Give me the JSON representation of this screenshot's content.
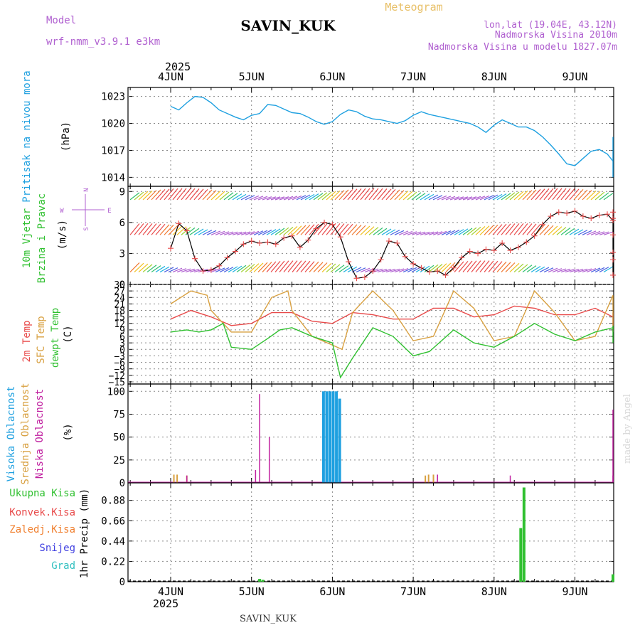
{
  "header": {
    "model_label": "Model",
    "model_value": "wrf-nmm_v3.9.1  e3km",
    "station": "SAVIN_KUK",
    "meteogram": "Meteogram",
    "lonlat": "lon,lat (19.04E, 43.12N)",
    "altitude": "Nadmorska Visina 2010m",
    "model_altitude": "Nadmorska Visina u modelu 1827.07m",
    "footer_station": "SAVIN_KUK",
    "credit": "made by Angel"
  },
  "colors": {
    "pressure": "#1ea0e0",
    "temp2m": "#e84a4a",
    "sfc": "#d8a040",
    "dew": "#30c030",
    "purple": "#b060d0",
    "high_cloud": "#1ea0e0",
    "mid_cloud": "#d8a040",
    "low_cloud": "#c020a0",
    "precip_total": "#30c030",
    "conv": "#e84a4a",
    "frozen": "#f08030",
    "snow": "#4040e0",
    "hail": "#30c0c0",
    "grid": "#888888"
  },
  "chart_data": {
    "type": "line",
    "x_range": [
      0,
      6.1
    ],
    "days": [
      "4JUN",
      "5JUN",
      "6JUN",
      "7JUN",
      "8JUN",
      "9JUN"
    ],
    "year": "2025",
    "panels": [
      {
        "id": "pressure",
        "ylabel_main": "Pritisak na nivou mora",
        "ylabel_unit": "(hPa)",
        "ylim": [
          1013,
          1024
        ],
        "yticks": [
          "1014",
          "1017",
          "1020",
          "1023"
        ],
        "series": [
          {
            "name": "MSLP",
            "x": [
              0,
              0.1,
              0.2,
              0.3,
              0.4,
              0.5,
              0.6,
              0.7,
              0.8,
              0.9,
              1.0,
              1.1,
              1.2,
              1.3,
              1.4,
              1.5,
              1.6,
              1.7,
              1.8,
              1.9,
              2.0,
              2.1,
              2.2,
              2.3,
              2.4,
              2.5,
              2.6,
              2.7,
              2.8,
              2.9,
              3.0,
              3.1,
              3.2,
              3.3,
              3.4,
              3.5,
              3.6,
              3.7,
              3.8,
              3.9,
              4.0,
              4.1,
              4.2,
              4.3,
              4.4,
              4.5,
              4.6,
              4.7,
              4.8,
              4.9,
              5.0,
              5.1,
              5.2,
              5.3,
              5.4,
              5.5,
              5.6,
              5.7,
              5.8,
              5.9,
              6.0,
              6.1
            ],
            "values": [
              1021.9,
              1021.5,
              1022.3,
              1023.0,
              1022.9,
              1022.3,
              1021.5,
              1021.1,
              1020.7,
              1020.4,
              1020.9,
              1021.1,
              1022.1,
              1022.0,
              1021.6,
              1021.2,
              1021.1,
              1020.7,
              1020.2,
              1019.9,
              1020.2,
              1021.0,
              1021.5,
              1021.3,
              1020.8,
              1020.5,
              1020.4,
              1020.2,
              1020.0,
              1020.3,
              1020.9,
              1021.3,
              1021.0,
              1020.8,
              1020.6,
              1020.4,
              1020.2,
              1020.0,
              1019.6,
              1019.0,
              1019.8,
              1020.4,
              1020.0,
              1019.6,
              1019.6,
              1019.2,
              1018.5,
              1017.6,
              1016.6,
              1015.5,
              1015.3,
              1016.1,
              1016.9,
              1017.1,
              1016.6,
              1015.8,
              1015.0,
              1014.3,
              1014.1,
              1014.0,
              1016.2,
              1018.5
            ]
          }
        ]
      },
      {
        "id": "wind",
        "ylabel_main": "10m Vjetar",
        "ylabel_sub": "Brzina i Pravac",
        "ylabel_unit": "(m/s)",
        "compass_w": "W",
        "compass_e": "E",
        "compass_n": "N",
        "compass_s": "S",
        "ylim": [
          0,
          9.5
        ],
        "yticks": [
          "0",
          "3",
          "6",
          "9"
        ],
        "series": [
          {
            "name": "Speed",
            "x": [
              0,
              0.1,
              0.2,
              0.3,
              0.4,
              0.5,
              0.6,
              0.7,
              0.8,
              0.9,
              1.0,
              1.1,
              1.2,
              1.3,
              1.4,
              1.5,
              1.6,
              1.7,
              1.8,
              1.9,
              2.0,
              2.1,
              2.2,
              2.3,
              2.4,
              2.5,
              2.6,
              2.7,
              2.8,
              2.9,
              3.0,
              3.1,
              3.2,
              3.3,
              3.4,
              3.5,
              3.6,
              3.7,
              3.8,
              3.9,
              4.0,
              4.1,
              4.2,
              4.3,
              4.4,
              4.5,
              4.6,
              4.7,
              4.8,
              4.9,
              5.0,
              5.1,
              5.2,
              5.3,
              5.4,
              5.5,
              5.6,
              5.7,
              5.8,
              5.9,
              6.0,
              6.1
            ],
            "values": [
              3.5,
              5.9,
              5.2,
              2.5,
              1.3,
              1.4,
              1.8,
              2.6,
              3.2,
              3.9,
              4.2,
              4.0,
              4.1,
              3.9,
              4.5,
              4.7,
              3.6,
              4.3,
              5.4,
              6.0,
              5.8,
              4.6,
              2.2,
              0.6,
              0.7,
              1.3,
              2.4,
              4.2,
              4.0,
              2.7,
              2.0,
              1.6,
              1.2,
              1.3,
              0.9,
              1.6,
              2.6,
              3.2,
              3.0,
              3.4,
              3.3,
              4.0,
              3.3,
              3.6,
              4.1,
              4.7,
              5.8,
              6.6,
              7.0,
              6.9,
              7.1,
              6.6,
              6.4,
              6.7,
              6.8,
              6.2,
              4.8,
              3.1,
              0.9,
              2.4,
              6.4,
              7.0
            ]
          }
        ],
        "arrow_rows_mps": [
          8.2,
          4.8,
          1.2
        ]
      },
      {
        "id": "temperature",
        "ylabel_main": "2m Temp",
        "ylabel_sub": "SFC Temp",
        "ylabel_sub2": "dewpt Temp",
        "ylabel_unit": "(C)",
        "ylim": [
          -16,
          30
        ],
        "yticks": [
          "-15",
          "-12",
          "-9",
          "-6",
          "-3",
          "0",
          "3",
          "6",
          "9",
          "12",
          "15",
          "18",
          "21",
          "24",
          "27",
          "30"
        ],
        "series": [
          {
            "name": "2m Temp",
            "x": [
              0,
              0.25,
              0.5,
              0.75,
              1.0,
              1.25,
              1.5,
              1.75,
              2.0,
              2.25,
              2.5,
              2.75,
              3.0,
              3.25,
              3.5,
              3.75,
              4.0,
              4.25,
              4.5,
              4.75,
              5.0,
              5.25,
              5.5,
              5.75,
              6.0,
              6.1
            ],
            "values": [
              14,
              18,
              15,
              11,
              12,
              17,
              17,
              13,
              12,
              17,
              16,
              14,
              14,
              19,
              19,
              15,
              16,
              20,
              19,
              16,
              16,
              19,
              15,
              11,
              17,
              11
            ]
          },
          {
            "name": "SFC Temp",
            "x": [
              0,
              0.25,
              0.45,
              0.5,
              0.75,
              1.0,
              1.25,
              1.45,
              1.5,
              1.75,
              2.0,
              2.12,
              2.25,
              2.5,
              2.75,
              3.0,
              3.25,
              3.5,
              3.75,
              4.0,
              4.25,
              4.5,
              4.75,
              5.0,
              5.25,
              5.5,
              5.75,
              6.0,
              6.1
            ],
            "values": [
              21,
              27,
              25,
              18,
              8,
              8,
              24,
              27,
              18,
              6,
              2,
              0,
              17,
              27,
              18,
              4,
              6,
              27,
              19,
              4,
              6,
              27,
              17,
              4,
              6,
              25,
              8,
              24,
              12
            ]
          },
          {
            "name": "dewpt Temp",
            "x": [
              0,
              0.2,
              0.35,
              0.5,
              0.65,
              0.75,
              1.0,
              1.2,
              1.35,
              1.5,
              1.75,
              2.0,
              2.1,
              2.25,
              2.5,
              2.75,
              3.0,
              3.2,
              3.5,
              3.75,
              4.0,
              4.25,
              4.5,
              4.75,
              5.0,
              5.25,
              5.5,
              5.75,
              6.0,
              6.1
            ],
            "values": [
              8,
              9,
              8,
              9,
              12,
              1,
              0,
              5,
              9,
              10,
              6,
              3,
              -13,
              -4,
              10,
              6,
              -3,
              -1,
              9,
              3,
              1,
              6,
              12,
              7,
              4,
              8,
              10,
              3,
              11,
              7
            ]
          }
        ]
      },
      {
        "id": "clouds",
        "ylabel_main": "Visoka Oblacnost",
        "ylabel_sub": "Srednja Oblacnost",
        "ylabel_sub2": "Niska Oblacnost",
        "ylabel_unit": "(%)",
        "ylim": [
          0,
          108
        ],
        "yticks": [
          "0",
          "25",
          "50",
          "75",
          "100"
        ],
        "series": [
          {
            "name": "High cloud",
            "x": [
              1.89,
              1.93,
              1.97,
              2.01,
              2.05,
              2.09
            ],
            "values": [
              100,
              100,
              100,
              100,
              100,
              92
            ]
          },
          {
            "name": "Mid cloud",
            "x": [
              0.04,
              0.08,
              0.2,
              3.15,
              3.19,
              3.25
            ],
            "values": [
              9,
              9,
              8,
              8,
              9,
              9
            ]
          },
          {
            "name": "Low cloud",
            "x": [
              0.2,
              1.05,
              1.1,
              1.22,
              3.3,
              4.2,
              5.9,
              5.95
            ],
            "values": [
              8,
              14,
              97,
              50,
              9,
              8,
              8,
              80
            ]
          }
        ]
      },
      {
        "id": "precip",
        "ylabel_main": "1hr Precip",
        "ylabel_unit": "(mm)",
        "legend": [
          "Ukupna Kisa",
          "Konvek.Kisa",
          "Zaledj.Kisa",
          "Snijeg",
          "Grad"
        ],
        "ylim": [
          0,
          1.07
        ],
        "yticks": [
          "0",
          "0.22",
          "0.44",
          "0.66",
          "0.88"
        ],
        "series": [
          {
            "name": "Ukupna Kisa",
            "x": [
              1.1,
              1.14,
              4.33,
              4.37,
              6.05,
              6.09
            ],
            "values": [
              0.03,
              0.02,
              0.58,
              1.02,
              0.04,
              0.08
            ]
          }
        ]
      }
    ]
  }
}
